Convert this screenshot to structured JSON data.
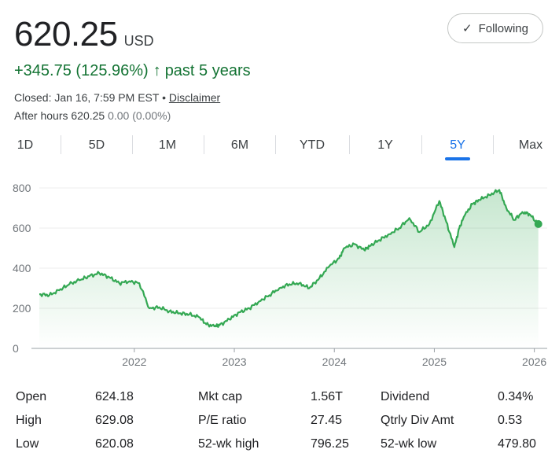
{
  "quote": {
    "price": "620.25",
    "currency": "USD",
    "change": "+345.75 (125.96%)",
    "change_arrow": "↑",
    "period": "past 5 years",
    "closed": "Closed: Jan 16, 7:59 PM EST",
    "separator": "•",
    "disclaimer": "Disclaimer",
    "after_hours_label": "After hours 620.25",
    "after_hours_change": "0.00 (0.00%)"
  },
  "follow_button": {
    "label": "Following",
    "icon": "check-icon"
  },
  "tabs": [
    "1D",
    "5D",
    "1M",
    "6M",
    "YTD",
    "1Y",
    "5Y",
    "Max"
  ],
  "active_tab": "5Y",
  "colors": {
    "line": "#34a853",
    "positive": "#137333",
    "accent": "#1a73e8"
  },
  "chart_data": {
    "type": "area",
    "ylim": [
      0,
      800
    ],
    "y_ticks": [
      "0",
      "200",
      "400",
      "600",
      "800"
    ],
    "x_ticks": [
      "2022",
      "2023",
      "2024",
      "2025",
      "2026"
    ],
    "x_tick_values": [
      2022.0,
      2023.0,
      2024.0,
      2025.0,
      2026.0
    ],
    "xlim": [
      2021.05,
      2026.05
    ],
    "grid": true,
    "x": [
      2021.05,
      2021.15,
      2021.25,
      2021.35,
      2021.45,
      2021.55,
      2021.65,
      2021.75,
      2021.85,
      2021.95,
      2022.05,
      2022.15,
      2022.25,
      2022.35,
      2022.45,
      2022.55,
      2022.65,
      2022.72,
      2022.8,
      2022.85,
      2022.95,
      2023.05,
      2023.15,
      2023.25,
      2023.35,
      2023.45,
      2023.55,
      2023.65,
      2023.75,
      2023.85,
      2023.95,
      2024.05,
      2024.1,
      2024.2,
      2024.3,
      2024.35,
      2024.45,
      2024.55,
      2024.65,
      2024.75,
      2024.85,
      2024.95,
      2025.05,
      2025.12,
      2025.2,
      2025.25,
      2025.3,
      2025.38,
      2025.45,
      2025.55,
      2025.65,
      2025.72,
      2025.8,
      2025.88,
      2025.95,
      2026.04
    ],
    "y": [
      270,
      265,
      290,
      320,
      340,
      360,
      375,
      355,
      325,
      335,
      325,
      200,
      205,
      185,
      175,
      170,
      155,
      120,
      110,
      115,
      145,
      180,
      200,
      235,
      265,
      300,
      320,
      325,
      300,
      350,
      410,
      450,
      500,
      520,
      490,
      510,
      540,
      570,
      600,
      650,
      580,
      620,
      735,
      630,
      505,
      600,
      660,
      720,
      740,
      765,
      790,
      700,
      640,
      680,
      670,
      620
    ],
    "last_point_marker": true
  },
  "stats": [
    [
      {
        "label": "Open",
        "value": "624.18"
      },
      {
        "label": "Mkt cap",
        "value": "1.56T"
      },
      {
        "label": "Dividend",
        "value": "0.34%"
      }
    ],
    [
      {
        "label": "High",
        "value": "629.08"
      },
      {
        "label": "P/E ratio",
        "value": "27.45"
      },
      {
        "label": "Qtrly Div Amt",
        "value": "0.53"
      }
    ],
    [
      {
        "label": "Low",
        "value": "620.08"
      },
      {
        "label": "52-wk high",
        "value": "796.25"
      },
      {
        "label": "52-wk low",
        "value": "479.80"
      }
    ]
  ]
}
